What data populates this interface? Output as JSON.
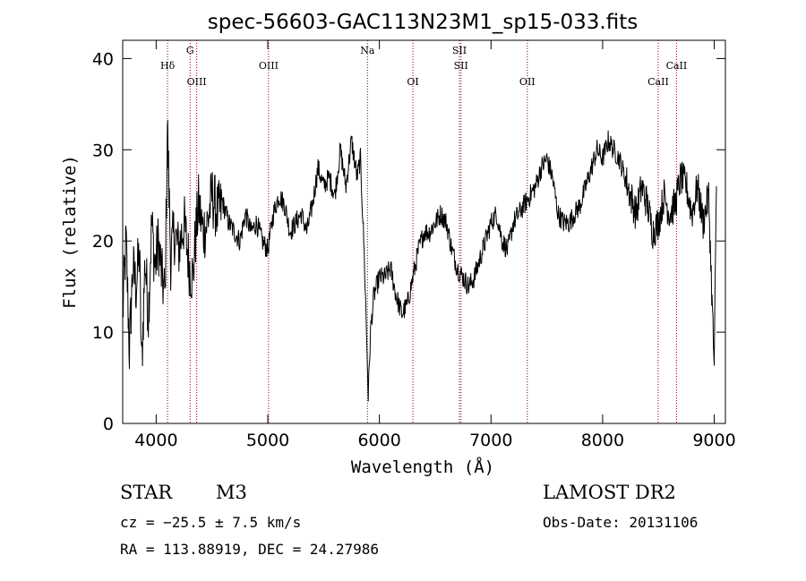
{
  "chart_data": {
    "type": "line",
    "title": "spec-56603-GAC113N23M1_sp15-033.fits",
    "xlabel": "Wavelength (Å)",
    "ylabel": "Flux (relative)",
    "xlim": [
      3700,
      9100
    ],
    "ylim": [
      0,
      42
    ],
    "xticks": [
      4000,
      5000,
      6000,
      7000,
      8000,
      9000
    ],
    "yticks": [
      0,
      10,
      20,
      30,
      40
    ],
    "grid": false,
    "series": [
      {
        "color": "#000000",
        "x": [
          3700,
          3730,
          3760,
          3790,
          3820,
          3850,
          3870,
          3900,
          3930,
          3960,
          3990,
          4020,
          4050,
          4080,
          4100,
          4130,
          4160,
          4200,
          4250,
          4300,
          4330,
          4350,
          4380,
          4420,
          4460,
          4500,
          4550,
          4600,
          4650,
          4700,
          4750,
          4800,
          4850,
          4900,
          4950,
          5000,
          5050,
          5100,
          5150,
          5200,
          5250,
          5300,
          5350,
          5400,
          5450,
          5500,
          5550,
          5600,
          5650,
          5700,
          5750,
          5800,
          5830,
          5860,
          5880,
          5900,
          5920,
          5950,
          6000,
          6050,
          6100,
          6150,
          6200,
          6250,
          6300,
          6350,
          6400,
          6450,
          6500,
          6550,
          6600,
          6650,
          6700,
          6750,
          6800,
          6850,
          6900,
          6950,
          7000,
          7050,
          7100,
          7150,
          7200,
          7250,
          7300,
          7350,
          7400,
          7450,
          7500,
          7550,
          7600,
          7650,
          7700,
          7750,
          7800,
          7850,
          7900,
          7950,
          8000,
          8050,
          8100,
          8150,
          8200,
          8250,
          8300,
          8350,
          8400,
          8450,
          8500,
          8550,
          8600,
          8650,
          8700,
          8750,
          8800,
          8850,
          8900,
          8950,
          9000,
          9020
        ],
        "y": [
          12,
          20,
          8,
          17,
          15,
          19,
          6,
          18,
          12,
          22,
          17,
          20,
          16,
          14,
          33,
          18,
          21,
          19,
          22,
          17,
          16,
          20,
          24,
          21,
          22,
          25,
          23,
          24,
          22,
          21,
          20,
          23,
          21,
          22,
          20,
          19,
          23,
          25,
          24,
          21,
          22,
          23,
          21,
          24,
          28,
          26,
          27,
          25,
          30,
          26,
          31,
          27,
          29,
          20,
          12,
          3,
          10,
          14,
          16,
          16,
          17,
          14,
          12,
          13,
          16,
          19,
          21,
          21,
          22,
          23,
          22,
          19,
          17,
          16,
          15,
          16,
          18,
          20,
          22,
          23,
          20,
          19,
          22,
          23,
          24,
          25,
          26,
          28,
          29,
          27,
          23,
          22,
          22,
          23,
          24,
          26,
          28,
          30,
          29,
          31,
          30,
          29,
          27,
          25,
          23,
          26,
          24,
          21,
          22,
          25,
          23,
          24,
          27,
          26,
          23,
          26,
          22,
          25,
          6,
          26
        ]
      }
    ],
    "lines": [
      {
        "label": "Hδ",
        "x": 4102,
        "row": 1
      },
      {
        "label": "G",
        "x": 4304,
        "row": 0
      },
      {
        "label": "OIII",
        "x": 4363,
        "row": 2
      },
      {
        "label": "OIII",
        "x": 5007,
        "row": 1
      },
      {
        "label": "Na",
        "x": 5893,
        "row": 0
      },
      {
        "label": "OI",
        "x": 6300,
        "row": 2
      },
      {
        "label": "SII",
        "x": 6717,
        "row": 0
      },
      {
        "label": "SII",
        "x": 6731,
        "row": 1
      },
      {
        "label": "OII",
        "x": 7325,
        "row": 2
      },
      {
        "label": "CaII",
        "x": 8498,
        "row": 2
      },
      {
        "label": "CaII",
        "x": 8662,
        "row": 1
      }
    ]
  },
  "info": {
    "object_class": "STAR",
    "subclass": "M3",
    "survey": "LAMOST DR2",
    "cz": "cz = −25.5 ± 7.5 km/s",
    "obs_date": "Obs-Date: 20131106",
    "coords": "RA = 113.88919, DEC =  24.27986"
  }
}
